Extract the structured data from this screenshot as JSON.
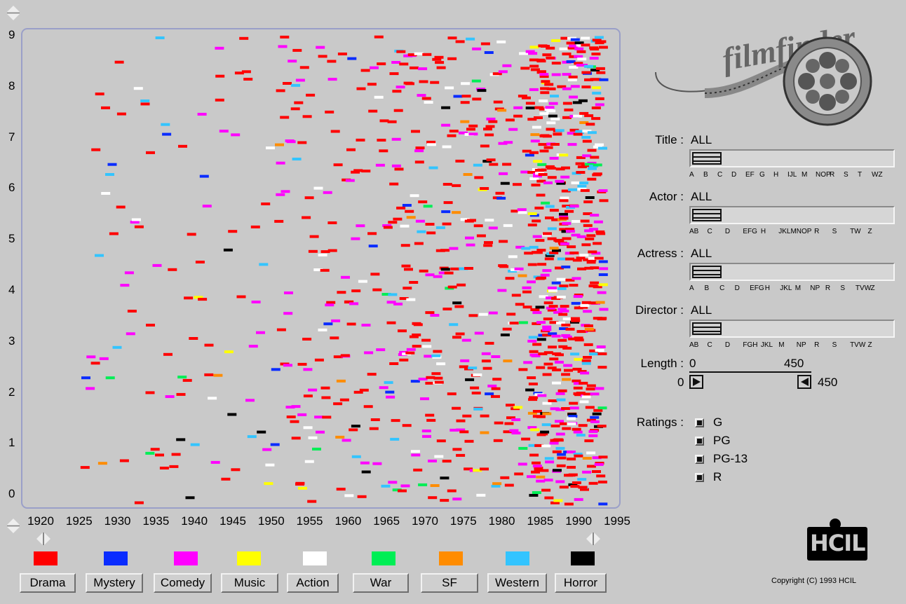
{
  "app": {
    "logo_text": "filmfinder",
    "copyright": "Copyright (C) 1993 HCIL",
    "hcil_logo": "HCIL"
  },
  "plot": {
    "y_ticks": [
      "9",
      "8",
      "7",
      "6",
      "5",
      "4",
      "3",
      "2",
      "1",
      "0"
    ],
    "x_ticks": [
      "1920",
      "1925",
      "1930",
      "1935",
      "1940",
      "1945",
      "1950",
      "1955",
      "1960",
      "1965",
      "1970",
      "1975",
      "1980",
      "1985",
      "1990",
      "1995"
    ]
  },
  "genres": [
    {
      "label": "Drama",
      "color": "#ff0000"
    },
    {
      "label": "Mystery",
      "color": "#0a2cff"
    },
    {
      "label": "Comedy",
      "color": "#ff00ff"
    },
    {
      "label": "Music",
      "color": "#ffff00"
    },
    {
      "label": "Action",
      "color": "#ffffff"
    },
    {
      "label": "War",
      "color": "#00ee55"
    },
    {
      "label": "SF",
      "color": "#ff8c00"
    },
    {
      "label": "Western",
      "color": "#33c4ff"
    },
    {
      "label": "Horror",
      "color": "#000000"
    }
  ],
  "filters": {
    "title": {
      "label": "Title :",
      "value": "ALL",
      "letters": [
        "A",
        "B",
        "C",
        "D",
        "EF",
        "G",
        "H",
        "IJL",
        "M",
        "NOP",
        "R",
        "S",
        "T",
        "WZ"
      ]
    },
    "actor": {
      "label": "Actor :",
      "value": "ALL",
      "letters": [
        "AB",
        "C",
        "D",
        "EFG",
        "H",
        "JKLM",
        "NOP",
        "R",
        "S",
        "TW",
        "Z"
      ]
    },
    "actress": {
      "label": "Actress :",
      "value": "ALL",
      "letters": [
        "A",
        "B",
        "C",
        "D",
        "EFG",
        "H",
        "JKL",
        "M",
        "NP",
        "R",
        "S",
        "TVW",
        "Z"
      ]
    },
    "director": {
      "label": "Director :",
      "value": "ALL",
      "letters": [
        "AB",
        "C",
        "D",
        "FGH",
        "JKL",
        "M",
        "NP",
        "R",
        "S",
        "TVW",
        "Z"
      ]
    }
  },
  "length": {
    "label": "Length :",
    "min_label": "0",
    "max_label": "450",
    "low": "0",
    "high": "450"
  },
  "ratings": {
    "label": "Ratings :",
    "items": [
      "G",
      "PG",
      "PG-13",
      "R"
    ]
  }
}
